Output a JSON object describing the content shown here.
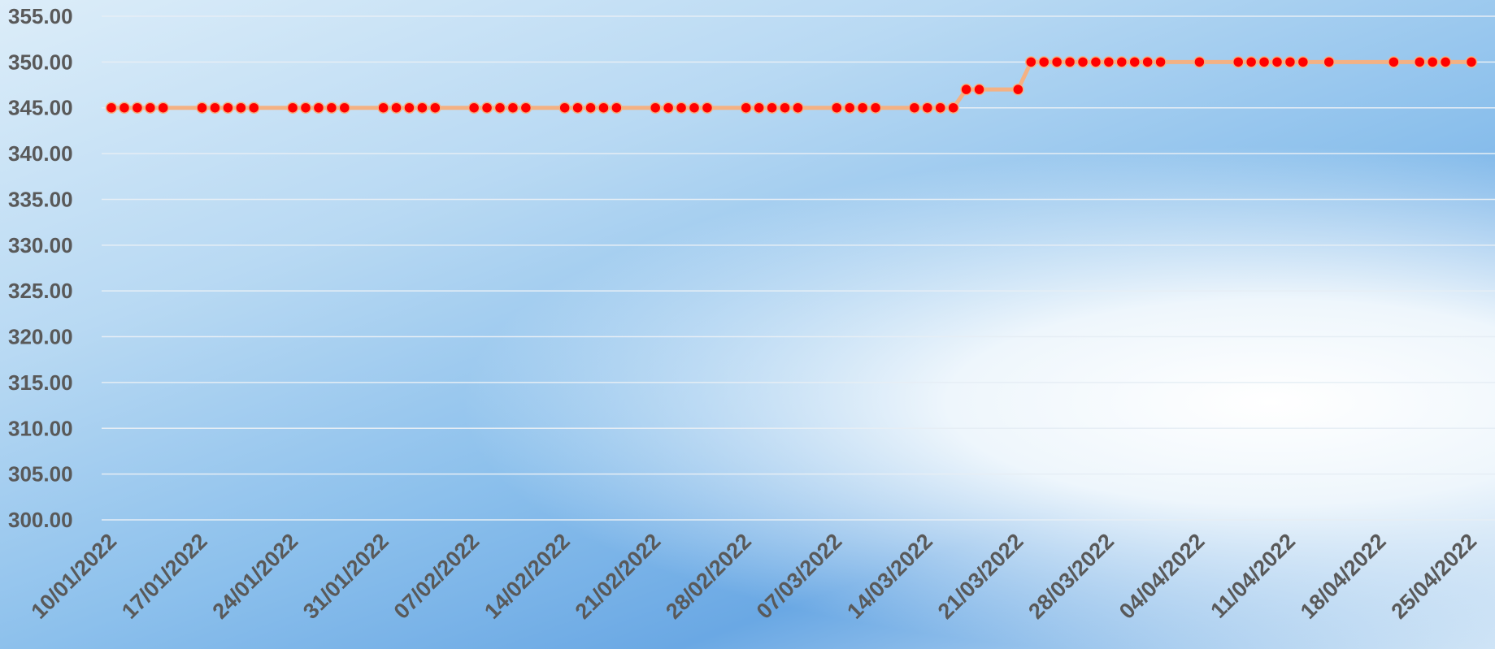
{
  "chart_data": {
    "type": "line",
    "x": [
      "10/01/2022",
      "11/01/2022",
      "12/01/2022",
      "13/01/2022",
      "14/01/2022",
      "17/01/2022",
      "18/01/2022",
      "19/01/2022",
      "20/01/2022",
      "21/01/2022",
      "24/01/2022",
      "25/01/2022",
      "26/01/2022",
      "27/01/2022",
      "28/01/2022",
      "31/01/2022",
      "01/02/2022",
      "02/02/2022",
      "03/02/2022",
      "04/02/2022",
      "07/02/2022",
      "08/02/2022",
      "09/02/2022",
      "10/02/2022",
      "11/02/2022",
      "14/02/2022",
      "15/02/2022",
      "16/02/2022",
      "17/02/2022",
      "18/02/2022",
      "21/02/2022",
      "22/02/2022",
      "23/02/2022",
      "24/02/2022",
      "25/02/2022",
      "28/02/2022",
      "01/03/2022",
      "02/03/2022",
      "03/03/2022",
      "04/03/2022",
      "07/03/2022",
      "08/03/2022",
      "09/03/2022",
      "10/03/2022",
      "13/03/2022",
      "14/03/2022",
      "15/03/2022",
      "16/03/2022",
      "17/03/2022",
      "18/03/2022",
      "21/03/2022",
      "22/03/2022",
      "23/03/2022",
      "24/03/2022",
      "25/03/2022",
      "26/03/2022",
      "27/03/2022",
      "28/03/2022",
      "29/03/2022",
      "30/03/2022",
      "31/03/2022",
      "01/04/2022",
      "04/04/2022",
      "07/04/2022",
      "08/04/2022",
      "09/04/2022",
      "10/04/2022",
      "11/04/2022",
      "12/04/2022",
      "14/04/2022",
      "19/04/2022",
      "21/04/2022",
      "22/04/2022",
      "23/04/2022",
      "25/04/2022"
    ],
    "values": [
      345,
      345,
      345,
      345,
      345,
      345,
      345,
      345,
      345,
      345,
      345,
      345,
      345,
      345,
      345,
      345,
      345,
      345,
      345,
      345,
      345,
      345,
      345,
      345,
      345,
      345,
      345,
      345,
      345,
      345,
      345,
      345,
      345,
      345,
      345,
      345,
      345,
      345,
      345,
      345,
      345,
      345,
      345,
      345,
      345,
      345,
      345,
      345,
      347,
      347,
      347,
      350,
      350,
      350,
      350,
      350,
      350,
      350,
      350,
      350,
      350,
      350,
      350,
      350,
      350,
      350,
      350,
      350,
      350,
      350,
      350,
      350,
      350,
      350,
      350
    ],
    "color": "#f4b183",
    "marker_color": "#ff0000",
    "xlim": [
      "10/01/2022",
      "25/04/2022"
    ],
    "xticks": [
      "10/01/2022",
      "17/01/2022",
      "24/01/2022",
      "31/01/2022",
      "07/02/2022",
      "14/02/2022",
      "21/02/2022",
      "28/02/2022",
      "07/03/2022",
      "14/03/2022",
      "21/03/2022",
      "28/03/2022",
      "04/04/2022",
      "11/04/2022",
      "18/04/2022",
      "25/04/2022"
    ],
    "ylim": [
      300,
      355
    ],
    "yticks": [
      {
        "value": 300,
        "label": "300.00"
      },
      {
        "value": 305,
        "label": "305.00"
      },
      {
        "value": 310,
        "label": "310.00"
      },
      {
        "value": 315,
        "label": "315.00"
      },
      {
        "value": 320,
        "label": "320.00"
      },
      {
        "value": 325,
        "label": "325.00"
      },
      {
        "value": 330,
        "label": "330.00"
      },
      {
        "value": 335,
        "label": "335.00"
      },
      {
        "value": 340,
        "label": "340.00"
      },
      {
        "value": 345,
        "label": "345.00"
      },
      {
        "value": 350,
        "label": "350.00"
      },
      {
        "value": 355,
        "label": "355.00"
      }
    ],
    "grid": true
  }
}
